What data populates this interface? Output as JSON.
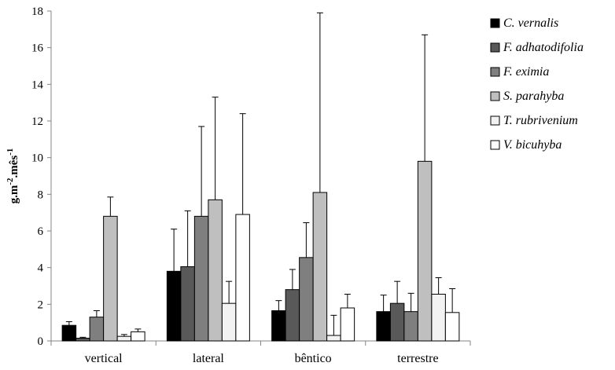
{
  "chart_data": {
    "type": "bar",
    "title": "",
    "xlabel": "",
    "ylabel": "g.m",
    "ylabel_parts": [
      "g.m",
      "-2",
      ".mês",
      "-1"
    ],
    "ylim": [
      0,
      18
    ],
    "yticks": [
      0,
      2,
      4,
      6,
      8,
      10,
      12,
      14,
      16,
      18
    ],
    "grid": false,
    "legend_position": "right",
    "categories": [
      "vertical",
      "lateral",
      "bêntico",
      "terrestre"
    ],
    "series": [
      {
        "name": "C. vernalis",
        "color": "#000000",
        "values": [
          0.85,
          3.8,
          1.65,
          1.6
        ],
        "errors": [
          0.2,
          2.3,
          0.55,
          0.9
        ]
      },
      {
        "name": "F. adhatodifolia",
        "color": "#595959",
        "values": [
          0.15,
          4.05,
          2.8,
          2.05
        ],
        "errors": [
          0.05,
          3.05,
          1.1,
          1.2
        ]
      },
      {
        "name": "F. eximia",
        "color": "#7f7f7f",
        "values": [
          1.3,
          6.8,
          4.55,
          1.6
        ],
        "errors": [
          0.35,
          4.9,
          1.9,
          1.0
        ]
      },
      {
        "name": "S. parahyba",
        "color": "#bfbfbf",
        "values": [
          6.8,
          7.7,
          8.1,
          9.8
        ],
        "errors": [
          1.05,
          5.6,
          9.8,
          6.9
        ]
      },
      {
        "name": "T. rubrivenium",
        "color": "#f2f2f2",
        "values": [
          0.25,
          2.05,
          0.3,
          2.55
        ],
        "errors": [
          0.1,
          1.2,
          1.1,
          0.9
        ]
      },
      {
        "name": "V. bicuhyba",
        "color": "#ffffff",
        "values": [
          0.5,
          6.9,
          1.8,
          1.55
        ],
        "errors": [
          0.15,
          5.5,
          0.75,
          1.3
        ]
      }
    ]
  }
}
